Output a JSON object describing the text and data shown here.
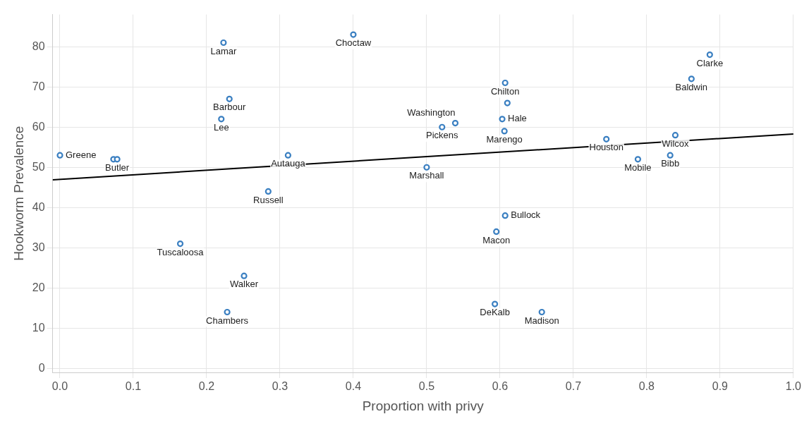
{
  "chart_data": {
    "type": "scatter",
    "xlabel": "Proportion with privy",
    "ylabel": "Hookworm Prevalence",
    "xlim": [
      -0.01,
      1.0
    ],
    "xticks": [
      {
        "value": 0,
        "label": "0.0"
      },
      0.1,
      0.2,
      0.3,
      0.4,
      0.5,
      0.6,
      0.7,
      0.8,
      0.9,
      {
        "value": 1,
        "label": "1.0"
      }
    ],
    "ylim": [
      -1,
      88
    ],
    "yticks": [
      0,
      10,
      20,
      30,
      40,
      50,
      60,
      70,
      80
    ],
    "grid": true,
    "legend": false,
    "marker": "circle",
    "series": [
      {
        "type": "scatter",
        "color": "#3a7fc1",
        "x": [
          0.0,
          0.073,
          0.078,
          0.223,
          0.4,
          0.231,
          0.22,
          0.311,
          0.284,
          0.164,
          0.251,
          0.228,
          0.539,
          0.521,
          0.5,
          0.607,
          0.61,
          0.603,
          0.606,
          0.607,
          0.595,
          0.593,
          0.657,
          0.745,
          0.788,
          0.832,
          0.839,
          0.861,
          0.886
        ],
        "values": [
          53,
          52,
          52,
          81,
          83,
          67,
          62,
          53,
          44,
          31,
          23,
          14,
          61,
          60,
          50,
          71,
          66,
          62,
          59,
          38,
          34,
          16,
          14,
          57,
          52,
          53,
          58,
          72,
          78
        ]
      },
      {
        "type": "line",
        "color": "#000000",
        "marker": "none",
        "x": [
          -0.01,
          1.0
        ],
        "values": [
          46.9,
          58.3
        ]
      }
    ],
    "annotations": [
      {
        "text": "Greene",
        "x": 0.0,
        "y": 53
      },
      {
        "text": "Butler",
        "x": 0.078,
        "y": 52
      },
      {
        "text": "Lamar",
        "x": 0.223,
        "y": 81
      },
      {
        "text": "Choctaw",
        "x": 0.4,
        "y": 83
      },
      {
        "text": "Barbour",
        "x": 0.231,
        "y": 67
      },
      {
        "text": "Lee",
        "x": 0.22,
        "y": 62
      },
      {
        "text": "Autauga",
        "x": 0.311,
        "y": 53
      },
      {
        "text": "Russell",
        "x": 0.284,
        "y": 44
      },
      {
        "text": "Tuscaloosa",
        "x": 0.164,
        "y": 31
      },
      {
        "text": "Walker",
        "x": 0.251,
        "y": 23
      },
      {
        "text": "Chambers",
        "x": 0.228,
        "y": 14
      },
      {
        "text": "Washington",
        "x": 0.539,
        "y": 61
      },
      {
        "text": "Pickens",
        "x": 0.521,
        "y": 60
      },
      {
        "text": "Marshall",
        "x": 0.5,
        "y": 50
      },
      {
        "text": "Chilton",
        "x": 0.607,
        "y": 71
      },
      {
        "text": "Hale",
        "x": 0.603,
        "y": 62
      },
      {
        "text": "Marengo",
        "x": 0.606,
        "y": 59
      },
      {
        "text": "Bullock",
        "x": 0.607,
        "y": 38
      },
      {
        "text": "Macon",
        "x": 0.595,
        "y": 34
      },
      {
        "text": "DeKalb",
        "x": 0.593,
        "y": 16
      },
      {
        "text": "Madison",
        "x": 0.657,
        "y": 14
      },
      {
        "text": "Houston",
        "x": 0.745,
        "y": 57
      },
      {
        "text": "Mobile",
        "x": 0.788,
        "y": 52
      },
      {
        "text": "Bibb",
        "x": 0.832,
        "y": 53
      },
      {
        "text": "Wilcox",
        "x": 0.839,
        "y": 58
      },
      {
        "text": "Baldwin",
        "x": 0.861,
        "y": 72
      },
      {
        "text": "Clarke",
        "x": 0.886,
        "y": 78
      }
    ]
  }
}
